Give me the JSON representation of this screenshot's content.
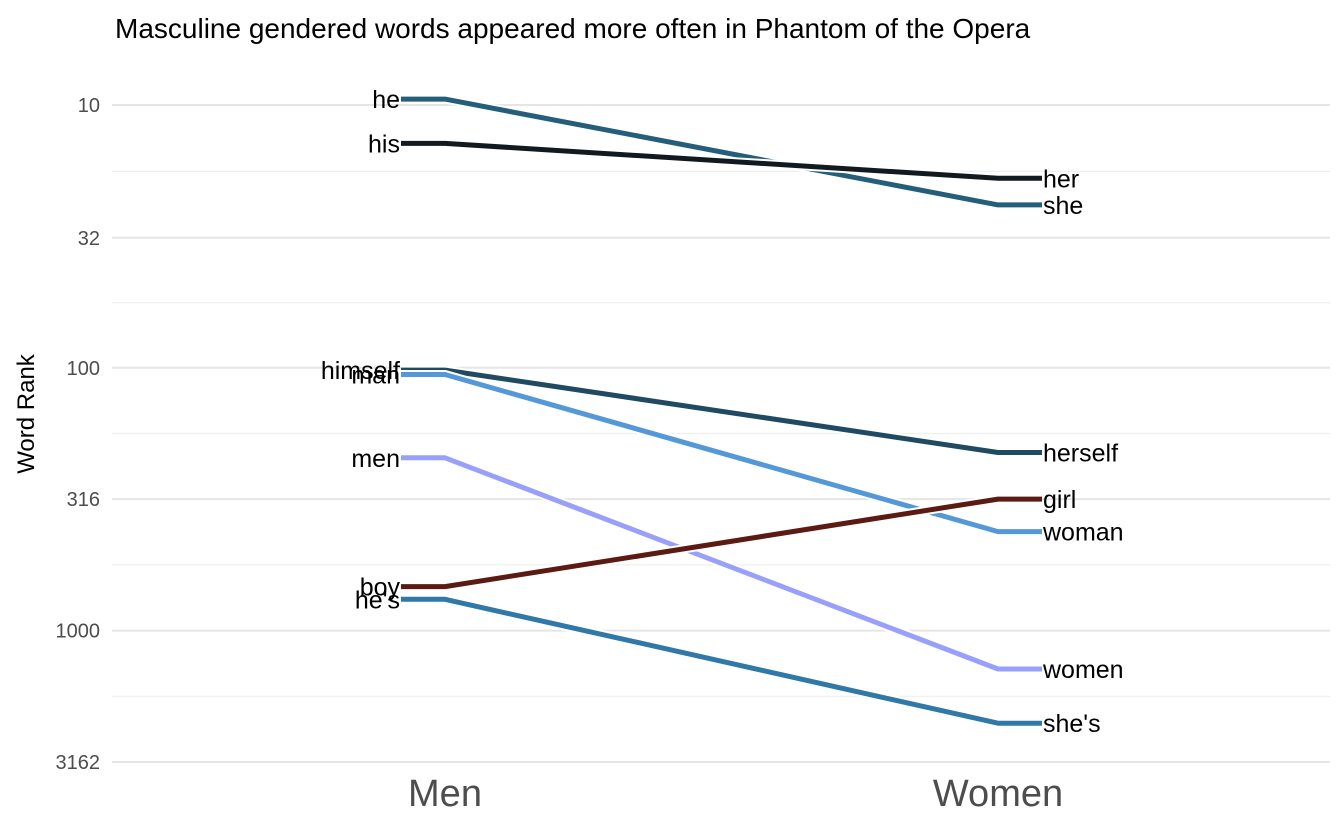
{
  "chart_data": {
    "type": "line",
    "title": "Masculine gendered words appeared more often in Phantom of the Opera",
    "xlabel": "",
    "ylabel": "Word Rank",
    "y_scale": "log10-reversed",
    "ylim": [
      5.5,
      3700
    ],
    "y_ticks": [
      10,
      32,
      100,
      316,
      1000,
      3162
    ],
    "y_tick_labels": [
      "10",
      "32",
      "100",
      "316",
      "1000",
      "3162"
    ],
    "categories": [
      "Men",
      "Women"
    ],
    "grid": true,
    "legend": "none",
    "series": [
      {
        "name": "he / she",
        "labels": [
          "he",
          "she"
        ],
        "values": [
          9.5,
          24
        ],
        "color": "#255e7a"
      },
      {
        "name": "his / her",
        "labels": [
          "his",
          "her"
        ],
        "values": [
          14,
          19
        ],
        "color": "#121a1f"
      },
      {
        "name": "himself / herself",
        "labels": [
          "himself",
          "herself"
        ],
        "values": [
          102,
          210
        ],
        "color": "#1f4a62"
      },
      {
        "name": "man / woman",
        "labels": [
          "man",
          "woman"
        ],
        "values": [
          106,
          420
        ],
        "color": "#5598d8"
      },
      {
        "name": "men / women",
        "labels": [
          "men",
          "women"
        ],
        "values": [
          220,
          1400
        ],
        "color": "#99a0fc"
      },
      {
        "name": "boy / girl",
        "labels": [
          "boy",
          "girl"
        ],
        "values": [
          680,
          316
        ],
        "color": "#5c1b12"
      },
      {
        "name": "he's / she's",
        "labels": [
          "he's",
          "she's"
        ],
        "values": [
          760,
          2250
        ],
        "color": "#2f78a8"
      }
    ]
  }
}
